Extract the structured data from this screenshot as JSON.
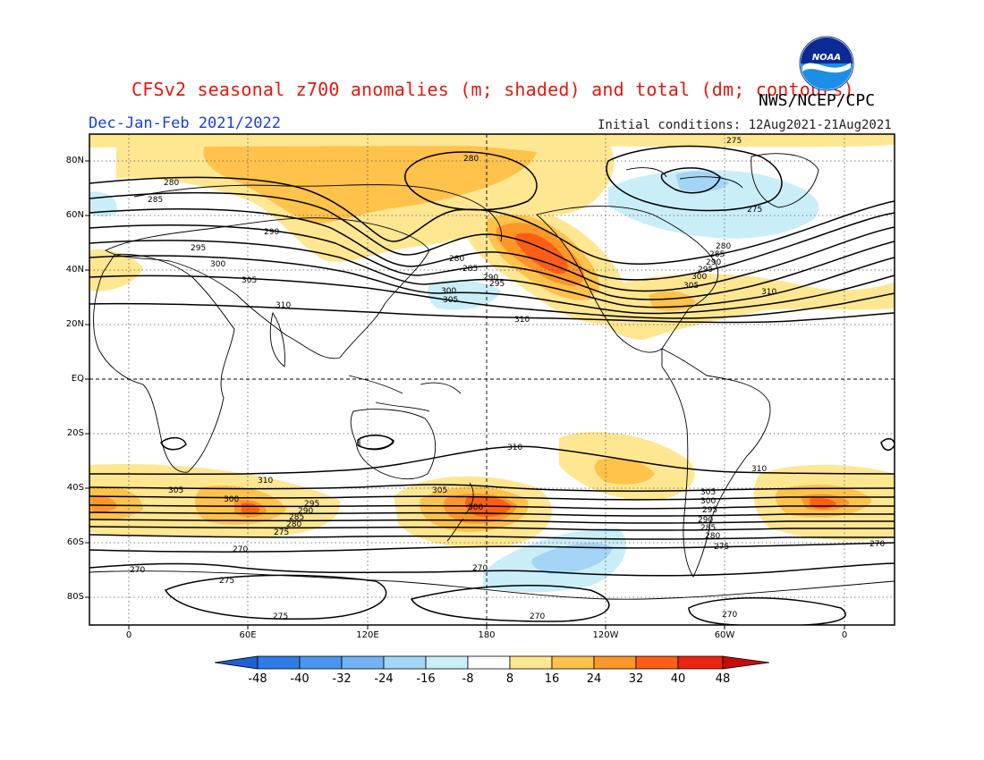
{
  "header": {
    "title": "CFSv2 seasonal z700 anomalies (m; shaded) and total (dm; contours)",
    "agency": "NWS/NCEP/CPC",
    "season": "Dec-Jan-Feb 2021/2022",
    "initial_conditions": "Initial conditions: 12Aug2021-21Aug2021",
    "logo_text": "NOAA"
  },
  "axes": {
    "lat_labels": [
      "80N",
      "60N",
      "40N",
      "20N",
      "EQ",
      "20S",
      "40S",
      "60S",
      "80S"
    ],
    "lon_labels": [
      "0",
      "60E",
      "120E",
      "180",
      "120W",
      "60W",
      "0"
    ]
  },
  "colorbar": {
    "labels": [
      "-48",
      "-40",
      "-32",
      "-24",
      "-16",
      "-8",
      "8",
      "16",
      "24",
      "32",
      "40",
      "48"
    ],
    "colors": [
      "#1f5fd6",
      "#2f7be6",
      "#4a95ef",
      "#74b2f3",
      "#a4d5f6",
      "#c9eef8",
      "#ffffff",
      "#ffe691",
      "#ffc24a",
      "#ff9628",
      "#ff5e14",
      "#ea2410",
      "#c70c08"
    ]
  },
  "contour_labels": {
    "nh": [
      "280",
      "285",
      "290",
      "295",
      "300",
      "305",
      "310",
      "275"
    ],
    "sh": [
      "305",
      "310",
      "300",
      "295",
      "290",
      "285",
      "280",
      "275",
      "270"
    ]
  },
  "colors": {
    "title": "#e8160c",
    "season": "#1a3fe0",
    "contour": "#000000"
  }
}
